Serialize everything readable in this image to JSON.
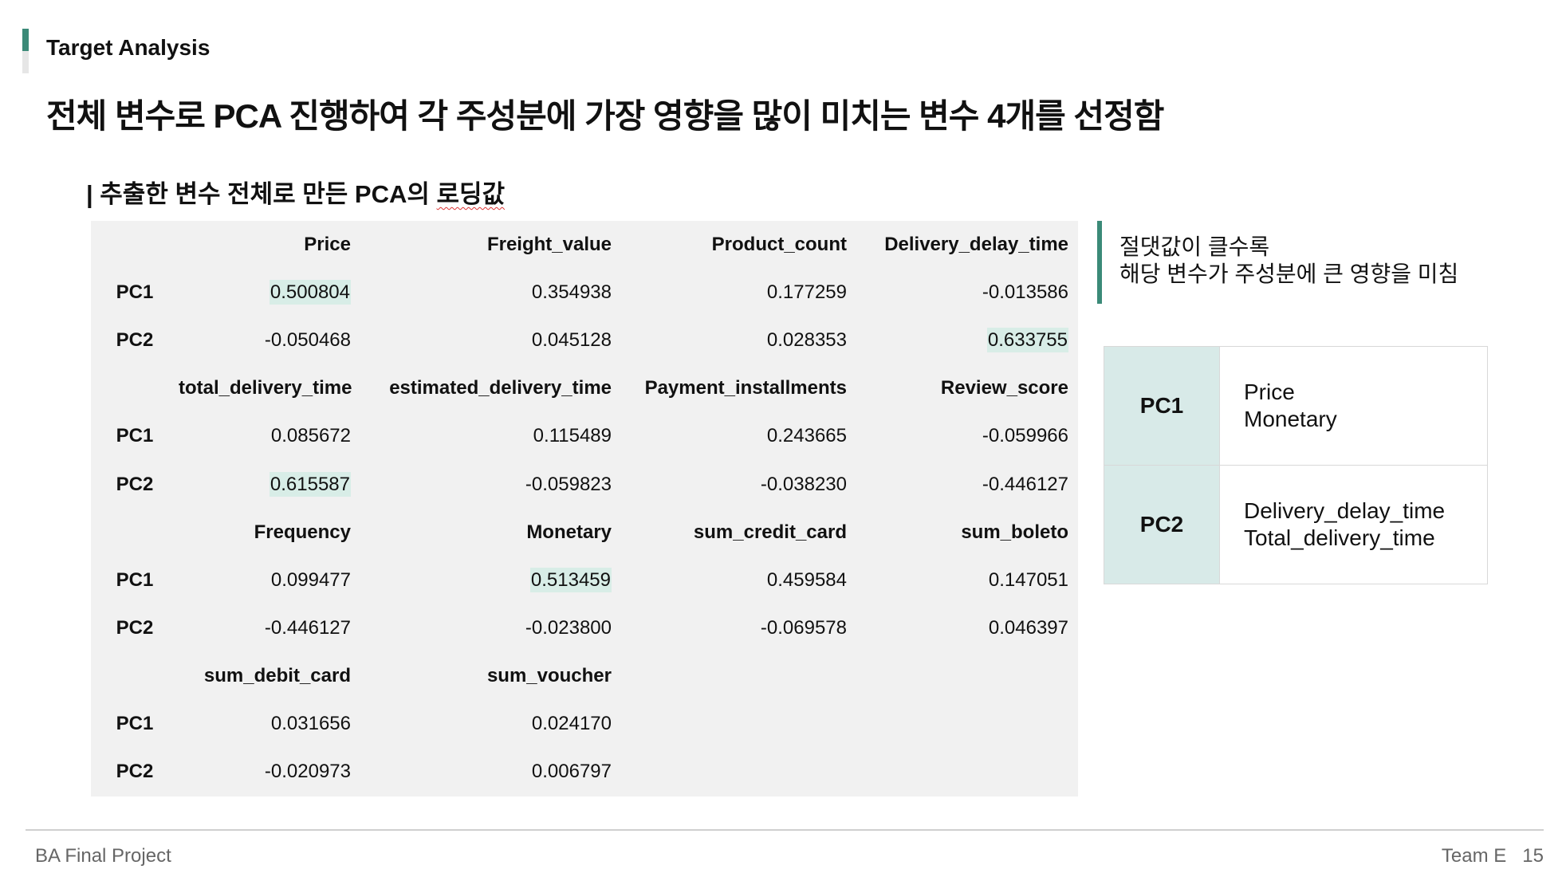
{
  "header": {
    "section_label": "Target Analysis",
    "headline": "전체 변수로 PCA 진행하여 각 주성분에 가장 영향을 많이 미치는 변수 4개를 선정함"
  },
  "subheading": {
    "prefix": "| 추출한 변수 전체로 만든 PCA의 ",
    "underlined": "로딩값"
  },
  "loadings": {
    "blocks": [
      {
        "headers": [
          "Price",
          "Freight_value",
          "Product_count",
          "Delivery_delay_time"
        ],
        "rows": [
          {
            "label": "PC1",
            "values": [
              "0.500804",
              "0.354938",
              "0.177259",
              "-0.013586"
            ],
            "highlight": [
              0
            ]
          },
          {
            "label": "PC2",
            "values": [
              "-0.050468",
              "0.045128",
              "0.028353",
              "0.633755"
            ],
            "highlight": [
              3
            ]
          }
        ]
      },
      {
        "headers": [
          "total_delivery_time",
          "estimated_delivery_time",
          "Payment_installments",
          "Review_score"
        ],
        "rows": [
          {
            "label": "PC1",
            "values": [
              "0.085672",
              "0.115489",
              "0.243665",
              "-0.059966"
            ],
            "highlight": []
          },
          {
            "label": "PC2",
            "values": [
              "0.615587",
              "-0.059823",
              "-0.038230",
              "-0.446127"
            ],
            "highlight": [
              0
            ]
          }
        ]
      },
      {
        "headers": [
          "Frequency",
          "Monetary",
          "sum_credit_card",
          "sum_boleto"
        ],
        "rows": [
          {
            "label": "PC1",
            "values": [
              "0.099477",
              "0.513459",
              "0.459584",
              "0.147051"
            ],
            "highlight": [
              1
            ]
          },
          {
            "label": "PC2",
            "values": [
              "-0.446127",
              "-0.023800",
              "-0.069578",
              "0.046397"
            ],
            "highlight": []
          }
        ]
      },
      {
        "headers": [
          "sum_debit_card",
          "sum_voucher",
          "",
          ""
        ],
        "rows": [
          {
            "label": "PC1",
            "values": [
              "0.031656",
              "0.024170",
              "",
              ""
            ],
            "highlight": []
          },
          {
            "label": "PC2",
            "values": [
              "-0.020973",
              "0.006797",
              "",
              ""
            ],
            "highlight": []
          }
        ]
      }
    ]
  },
  "note": {
    "line1": "절댓값이 클수록",
    "line2": "해당 변수가 주성분에 큰 영향을 미침"
  },
  "summary": [
    {
      "pc": "PC1",
      "vars": [
        "Price",
        "Monetary"
      ]
    },
    {
      "pc": "PC2",
      "vars": [
        "Delivery_delay_time",
        "Total_delivery_time"
      ]
    }
  ],
  "footer": {
    "project": "BA Final Project",
    "team": "Team E",
    "page": "15"
  },
  "colors": {
    "accent": "#3b8a78",
    "highlight": "#d8ede7",
    "table_bg": "#f1f1f1",
    "summary_pc_bg": "#d8eae8"
  }
}
